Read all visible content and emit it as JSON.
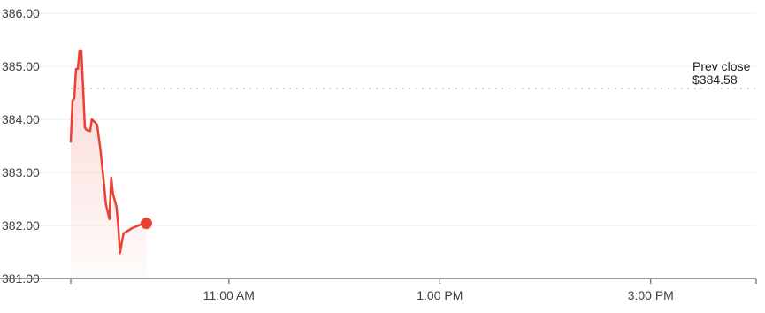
{
  "chart_data": {
    "type": "line",
    "x_unit": "time",
    "ylim": [
      381.0,
      386.0
    ],
    "yticks": [
      {
        "value": 381.0,
        "label": "381.00"
      },
      {
        "value": 382.0,
        "label": "382.00"
      },
      {
        "value": 383.0,
        "label": "383.00"
      },
      {
        "value": 384.0,
        "label": "384.00"
      },
      {
        "value": 385.0,
        "label": "385.00"
      },
      {
        "value": 386.0,
        "label": "386.00"
      }
    ],
    "xlim": [
      "9:30 AM",
      "4:00 PM"
    ],
    "xticks": [
      "11:00 AM",
      "1:00 PM",
      "3:00 PM"
    ],
    "grid": true,
    "reference_line": {
      "label_line1": "Prev close",
      "label_line2": "$384.58",
      "value": 384.58
    },
    "series": [
      {
        "color": "#e94235",
        "points": [
          [
            "9:30",
            383.58
          ],
          [
            "9:31",
            384.35
          ],
          [
            "9:32",
            384.4
          ],
          [
            "9:33",
            384.95
          ],
          [
            "9:34",
            384.95
          ],
          [
            "9:35",
            385.3
          ],
          [
            "9:36",
            385.3
          ],
          [
            "9:37",
            384.6
          ],
          [
            "9:38",
            383.85
          ],
          [
            "9:39",
            383.8
          ],
          [
            "9:41",
            383.78
          ],
          [
            "9:42",
            384.0
          ],
          [
            "9:45",
            383.9
          ],
          [
            "9:47",
            383.4
          ],
          [
            "9:49",
            382.75
          ],
          [
            "9:50",
            382.4
          ],
          [
            "9:52",
            382.12
          ],
          [
            "9:53",
            382.9
          ],
          [
            "9:54",
            382.6
          ],
          [
            "9:56",
            382.35
          ],
          [
            "9:57",
            382.0
          ],
          [
            "9:58",
            381.48
          ],
          [
            "10:00",
            381.85
          ],
          [
            "10:05",
            381.95
          ],
          [
            "10:10",
            382.02
          ],
          [
            "10:13",
            382.04
          ]
        ]
      }
    ]
  }
}
